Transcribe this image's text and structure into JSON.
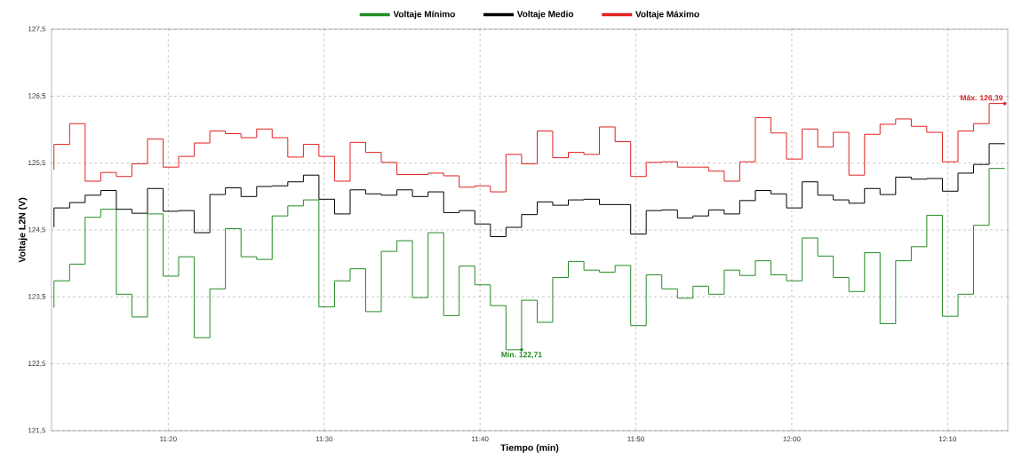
{
  "chart_data": {
    "type": "step",
    "xlabel": "Tiempo (min)",
    "ylabel": "Voltaje L2N (V)",
    "x": [
      11.2111,
      11.2278,
      11.2444,
      11.2611,
      11.2778,
      11.2944,
      11.3111,
      11.3278,
      11.3444,
      11.3611,
      11.3778,
      11.3944,
      11.4111,
      11.4278,
      11.4444,
      11.4611,
      11.4778,
      11.4944,
      11.5111,
      11.5278,
      11.5444,
      11.5611,
      11.5778,
      11.5944,
      11.6111,
      11.6278,
      11.6444,
      11.6611,
      11.6778,
      11.6944,
      11.7111,
      11.7278,
      11.7444,
      11.7611,
      11.7778,
      11.7944,
      11.8111,
      11.8278,
      11.8444,
      11.8611,
      11.8778,
      11.8944,
      11.9111,
      11.9278,
      11.9444,
      11.9611,
      11.9778,
      11.9944,
      12.0111,
      12.0278,
      12.0444,
      12.0611,
      12.0778,
      12.0944,
      12.1111,
      12.1278,
      12.1444,
      12.1611,
      12.1778,
      12.1944,
      12.2111,
      12.2278
    ],
    "series": [
      {
        "name": "Voltaje Mínimo",
        "color": "#228b22",
        "values": [
          123.34,
          123.74,
          123.99,
          124.69,
          124.81,
          123.54,
          123.2,
          124.74,
          123.81,
          124.1,
          122.89,
          123.62,
          124.52,
          124.1,
          124.06,
          124.71,
          124.86,
          124.95,
          123.35,
          123.74,
          123.92,
          123.28,
          124.18,
          124.34,
          123.49,
          124.46,
          123.22,
          123.96,
          123.68,
          123.37,
          122.71,
          123.45,
          123.12,
          123.79,
          124.03,
          123.9,
          123.87,
          123.97,
          123.07,
          123.83,
          123.62,
          123.48,
          123.66,
          123.54,
          123.9,
          123.82,
          124.04,
          123.83,
          123.74,
          124.38,
          124.11,
          123.79,
          123.58,
          124.16,
          123.1,
          124.04,
          124.25,
          124.72,
          123.21,
          123.54,
          124.57,
          125.42
        ]
      },
      {
        "name": "Voltaje Medio",
        "color": "#000000",
        "values": [
          124.54,
          124.83,
          124.91,
          125.02,
          125.09,
          124.81,
          124.75,
          125.12,
          124.78,
          124.79,
          124.46,
          125.03,
          125.13,
          125.0,
          125.15,
          125.16,
          125.22,
          125.32,
          124.96,
          124.74,
          125.1,
          125.04,
          125.02,
          125.1,
          125.0,
          125.07,
          124.76,
          124.79,
          124.59,
          124.4,
          124.54,
          124.73,
          124.92,
          124.87,
          124.95,
          124.96,
          124.88,
          124.88,
          124.44,
          124.79,
          124.8,
          124.68,
          124.71,
          124.8,
          124.74,
          124.94,
          125.09,
          125.04,
          124.83,
          125.22,
          125.02,
          124.95,
          124.9,
          125.12,
          125.03,
          125.29,
          125.26,
          125.27,
          125.08,
          125.35,
          125.48,
          125.79
        ]
      },
      {
        "name": "Voltaje Máximo",
        "color": "#e02020",
        "values": [
          125.4,
          125.78,
          126.09,
          125.23,
          125.36,
          125.3,
          125.49,
          125.86,
          125.44,
          125.6,
          125.8,
          125.98,
          125.94,
          125.88,
          126.01,
          125.88,
          125.59,
          125.78,
          125.6,
          125.23,
          125.81,
          125.66,
          125.51,
          125.33,
          125.33,
          125.35,
          125.31,
          125.14,
          125.16,
          125.07,
          125.63,
          125.49,
          125.98,
          125.58,
          125.66,
          125.63,
          126.04,
          125.82,
          125.3,
          125.51,
          125.52,
          125.44,
          125.44,
          125.38,
          125.23,
          125.52,
          126.18,
          125.95,
          125.56,
          126.01,
          125.74,
          125.96,
          125.32,
          125.93,
          126.08,
          126.16,
          126.05,
          125.96,
          125.52,
          125.98,
          126.09,
          126.39
        ]
      }
    ],
    "xlim": [
      11.2085,
      12.231
    ],
    "xticks": [
      {
        "value": 11.3333,
        "label": "11:20"
      },
      {
        "value": 11.5,
        "label": "11:30"
      },
      {
        "value": 11.6667,
        "label": "11:40"
      },
      {
        "value": 11.8333,
        "label": "11:50"
      },
      {
        "value": 12,
        "label": "12:00"
      },
      {
        "value": 12.1667,
        "label": "12:10"
      }
    ],
    "ylim": [
      121.5,
      127.5
    ],
    "yticks": [
      {
        "value": 121.5,
        "label": "121,5"
      },
      {
        "value": 122.5,
        "label": "122,5"
      },
      {
        "value": 123.5,
        "label": "123,5"
      },
      {
        "value": 124.5,
        "label": "124,5"
      },
      {
        "value": 125.5,
        "label": "125,5"
      },
      {
        "value": 126.5,
        "label": "126,5"
      },
      {
        "value": 127.5,
        "label": "127,5"
      }
    ],
    "annotations": [
      {
        "text": "Máx. 126,39",
        "x": 12.2278,
        "y": 126.39
      },
      {
        "text": "Min. 122,71",
        "x": 11.7111,
        "y": 122.71
      }
    ],
    "grid": true,
    "legend": "top",
    "marker": "none",
    "line_style": "solid"
  }
}
